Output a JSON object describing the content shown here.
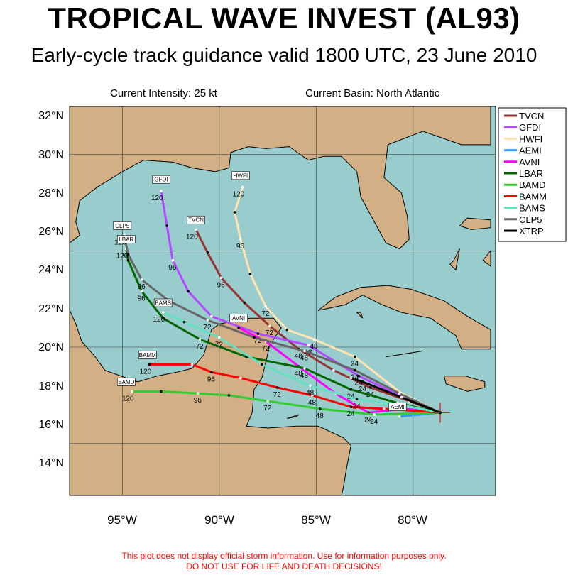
{
  "header": {
    "title": "TROPICAL WAVE INVEST (AL93)",
    "subtitle": "Early-cycle track guidance valid 1800 UTC, 23 June 2010",
    "intensity": "Current Intensity: 25 kt",
    "basin": "Current Basin: North Atlantic"
  },
  "axes": {
    "lat_labels": [
      "32°N",
      "30°N",
      "28°N",
      "26°N",
      "24°N",
      "22°N",
      "20°N",
      "18°N",
      "16°N",
      "14°N"
    ],
    "lon_labels": [
      "95°W",
      "90°W",
      "85°W",
      "80°W"
    ]
  },
  "footer": {
    "line1": "This plot does not display official storm information. Use for information purposes only.",
    "line2": "DO NOT USE FOR LIFE AND DEATH DECISIONS!"
  },
  "colors": {
    "ocean": "#99CCCC",
    "land": "#D2AF84",
    "TVCN": "#993333",
    "GFDI": "#B24BFF",
    "HWFI": "#FFE4B2",
    "AEMI": "#3399FF",
    "AVNI": "#FF00FF",
    "LBAR": "#006600",
    "BAMD": "#33CC33",
    "BAMM": "#FF0000",
    "BAMS": "#66E0C2",
    "CLP5": "#666666",
    "XTRP": "#000000"
  },
  "chart_data": {
    "type": "map-tracks",
    "storm_position": {
      "lon": -78.6,
      "lat": 16.6
    },
    "lon_range": [
      -98,
      -76
    ],
    "lat_range": [
      11.5,
      33
    ],
    "legend_position": "top-right",
    "tracks": [
      {
        "name": "TVCN",
        "points": [
          [
            -78.6,
            16.6
          ],
          [
            -80.2,
            17.2
          ],
          [
            -82.2,
            17.9
          ],
          [
            -84.1,
            18.8
          ],
          [
            -85.9,
            19.9
          ],
          [
            -87.4,
            21.1
          ],
          [
            -88.7,
            22.3
          ],
          [
            -89.9,
            23.6
          ],
          [
            -90.6,
            24.9
          ],
          [
            -91.2,
            26.1
          ]
        ],
        "labels": [
          {
            "text": "24",
            "lon": -82.2,
            "lat": 17.9
          },
          {
            "text": "48",
            "lon": -85.9,
            "lat": 19.9
          },
          {
            "text": "72",
            "lon": -87.4,
            "lat": 21.1
          },
          {
            "text": "96",
            "lon": -89.9,
            "lat": 23.6
          },
          {
            "text": "120",
            "lon": -91.2,
            "lat": 26.1
          }
        ]
      },
      {
        "name": "GFDI",
        "points": [
          [
            -78.6,
            16.6
          ],
          [
            -80.5,
            17.4
          ],
          [
            -82.8,
            18.5
          ],
          [
            -85.4,
            20.1
          ],
          [
            -88.0,
            20.7
          ],
          [
            -90.4,
            21.6
          ],
          [
            -91.6,
            22.9
          ],
          [
            -92.4,
            24.5
          ],
          [
            -92.7,
            26.3
          ],
          [
            -93.0,
            28.1
          ]
        ],
        "labels": [
          {
            "text": "24",
            "lon": -82.8,
            "lat": 18.5
          },
          {
            "text": "48",
            "lon": -85.4,
            "lat": 20.1
          },
          {
            "text": "72",
            "lon": -88.0,
            "lat": 20.7
          },
          {
            "text": "96",
            "lon": -92.4,
            "lat": 24.5
          },
          {
            "text": "120",
            "lon": -93.0,
            "lat": 28.1
          }
        ]
      },
      {
        "name": "HWFI",
        "points": [
          [
            -78.6,
            16.6
          ],
          [
            -80.6,
            17.6
          ],
          [
            -83.0,
            19.5
          ],
          [
            -85.1,
            20.4
          ],
          [
            -86.5,
            20.9
          ],
          [
            -87.6,
            22.1
          ],
          [
            -88.4,
            23.8
          ],
          [
            -88.9,
            25.6
          ],
          [
            -89.2,
            27.0
          ],
          [
            -88.8,
            28.3
          ]
        ],
        "labels": [
          {
            "text": "24",
            "lon": -83.0,
            "lat": 19.5
          },
          {
            "text": "48",
            "lon": -85.1,
            "lat": 20.4
          },
          {
            "text": "72",
            "lon": -87.6,
            "lat": 22.1
          },
          {
            "text": "96",
            "lon": -88.9,
            "lat": 25.6
          },
          {
            "text": "120",
            "lon": -88.8,
            "lat": 28.3
          }
        ]
      },
      {
        "name": "AEMI",
        "points": [
          [
            -78.6,
            16.6
          ],
          [
            -80.7,
            16.4
          ]
        ],
        "labels": []
      },
      {
        "name": "AVNI",
        "points": [
          [
            -78.6,
            16.6
          ],
          [
            -80.4,
            16.8
          ],
          [
            -82.3,
            16.6
          ],
          [
            -84.0,
            17.6
          ],
          [
            -85.9,
            19.0
          ],
          [
            -87.6,
            20.3
          ],
          [
            -89.0,
            21.0
          ]
        ],
        "labels": [
          {
            "text": "24",
            "lon": -82.3,
            "lat": 16.6
          },
          {
            "text": "48",
            "lon": -85.9,
            "lat": 19.0
          },
          {
            "text": "72",
            "lon": -87.6,
            "lat": 20.3
          }
        ]
      },
      {
        "name": "LBAR",
        "points": [
          [
            -78.6,
            16.6
          ],
          [
            -80.8,
            17.1
          ],
          [
            -83.2,
            17.8
          ],
          [
            -85.6,
            18.9
          ],
          [
            -88.6,
            19.5
          ],
          [
            -91.0,
            20.4
          ],
          [
            -92.9,
            21.5
          ],
          [
            -94.0,
            22.9
          ],
          [
            -94.7,
            24.5
          ],
          [
            -94.8,
            25.1
          ]
        ],
        "labels": [
          {
            "text": "24",
            "lon": -83.2,
            "lat": 17.8
          },
          {
            "text": "48",
            "lon": -85.6,
            "lat": 18.9
          },
          {
            "text": "72",
            "lon": -91.0,
            "lat": 20.4
          },
          {
            "text": "96",
            "lon": -94.0,
            "lat": 22.9
          },
          {
            "text": "120",
            "lon": -94.8,
            "lat": 25.1
          }
        ]
      },
      {
        "name": "BAMD",
        "points": [
          [
            -78.6,
            16.6
          ],
          [
            -82.0,
            16.5
          ],
          [
            -84.8,
            16.8
          ],
          [
            -87.5,
            17.2
          ],
          [
            -89.5,
            17.5
          ],
          [
            -91.1,
            17.6
          ],
          [
            -93.0,
            17.7
          ],
          [
            -94.5,
            17.7
          ]
        ],
        "labels": [
          {
            "text": "24",
            "lon": -82.0,
            "lat": 16.5
          },
          {
            "text": "48",
            "lon": -84.8,
            "lat": 16.8
          },
          {
            "text": "72",
            "lon": -87.5,
            "lat": 17.2
          },
          {
            "text": "96",
            "lon": -91.1,
            "lat": 17.6
          },
          {
            "text": "120",
            "lon": -94.5,
            "lat": 17.7
          }
        ]
      },
      {
        "name": "BAMM",
        "points": [
          [
            -78.6,
            16.6
          ],
          [
            -81.5,
            16.8
          ],
          [
            -83.2,
            16.9
          ],
          [
            -85.2,
            17.5
          ],
          [
            -87.0,
            17.9
          ],
          [
            -88.9,
            18.4
          ],
          [
            -90.4,
            18.7
          ],
          [
            -91.4,
            19.1
          ],
          [
            -93.6,
            19.1
          ]
        ],
        "labels": [
          {
            "text": "24",
            "lon": -83.2,
            "lat": 16.9
          },
          {
            "text": "48",
            "lon": -85.2,
            "lat": 17.5
          },
          {
            "text": "72",
            "lon": -87.0,
            "lat": 17.9
          },
          {
            "text": "96",
            "lon": -90.4,
            "lat": 18.7
          },
          {
            "text": "120",
            "lon": -93.6,
            "lat": 19.1
          }
        ]
      },
      {
        "name": "BAMS",
        "points": [
          [
            -78.6,
            16.6
          ],
          [
            -80.6,
            17.0
          ],
          [
            -82.9,
            17.3
          ],
          [
            -85.3,
            18.0
          ],
          [
            -87.8,
            19.1
          ],
          [
            -90.0,
            20.5
          ],
          [
            -91.8,
            21.3
          ],
          [
            -92.9,
            21.8
          ]
        ],
        "labels": [
          {
            "text": "24",
            "lon": -82.9,
            "lat": 17.3
          },
          {
            "text": "48",
            "lon": -85.3,
            "lat": 18.0
          },
          {
            "text": "72",
            "lon": -90.0,
            "lat": 20.5
          },
          {
            "text": "120",
            "lon": -92.9,
            "lat": 21.8
          }
        ]
      },
      {
        "name": "CLP5",
        "points": [
          [
            -78.6,
            16.6
          ],
          [
            -80.7,
            17.6
          ],
          [
            -83.0,
            18.8
          ],
          [
            -85.6,
            19.8
          ],
          [
            -88.2,
            20.5
          ],
          [
            -90.6,
            21.4
          ],
          [
            -92.6,
            22.4
          ],
          [
            -94.0,
            23.5
          ],
          [
            -94.7,
            24.8
          ],
          [
            -94.9,
            25.8
          ]
        ],
        "labels": [
          {
            "text": "24",
            "lon": -83.0,
            "lat": 18.8
          },
          {
            "text": "48",
            "lon": -85.6,
            "lat": 19.8
          },
          {
            "text": "72",
            "lon": -90.6,
            "lat": 21.4
          },
          {
            "text": "96",
            "lon": -94.0,
            "lat": 23.5
          },
          {
            "text": "120",
            "lon": -94.9,
            "lat": 25.8
          }
        ]
      },
      {
        "name": "XTRP",
        "points": [
          [
            -78.6,
            16.6
          ],
          [
            -80.6,
            17.4
          ],
          [
            -82.6,
            18.2
          ],
          [
            -83.2,
            18.4
          ]
        ],
        "labels": [
          {
            "text": "24",
            "lon": -82.6,
            "lat": 18.2
          }
        ]
      }
    ],
    "model_labels": [
      {
        "text": "GFDI",
        "lon": -93.0,
        "lat": 28.5
      },
      {
        "text": "HWFI",
        "lon": -88.9,
        "lat": 28.7
      },
      {
        "text": "TVCN",
        "lon": -91.2,
        "lat": 26.4
      },
      {
        "text": "CLP5",
        "lon": -95.0,
        "lat": 26.1
      },
      {
        "text": "LBAR",
        "lon": -94.8,
        "lat": 25.4
      },
      {
        "text": "BAMS",
        "lon": -92.9,
        "lat": 22.1
      },
      {
        "text": "AVNI",
        "lon": -89.0,
        "lat": 21.3
      },
      {
        "text": "BAMM",
        "lon": -93.7,
        "lat": 19.4
      },
      {
        "text": "BAMD",
        "lon": -94.8,
        "lat": 18.0
      },
      {
        "text": "AEMI",
        "lon": -80.8,
        "lat": 16.7
      }
    ]
  }
}
